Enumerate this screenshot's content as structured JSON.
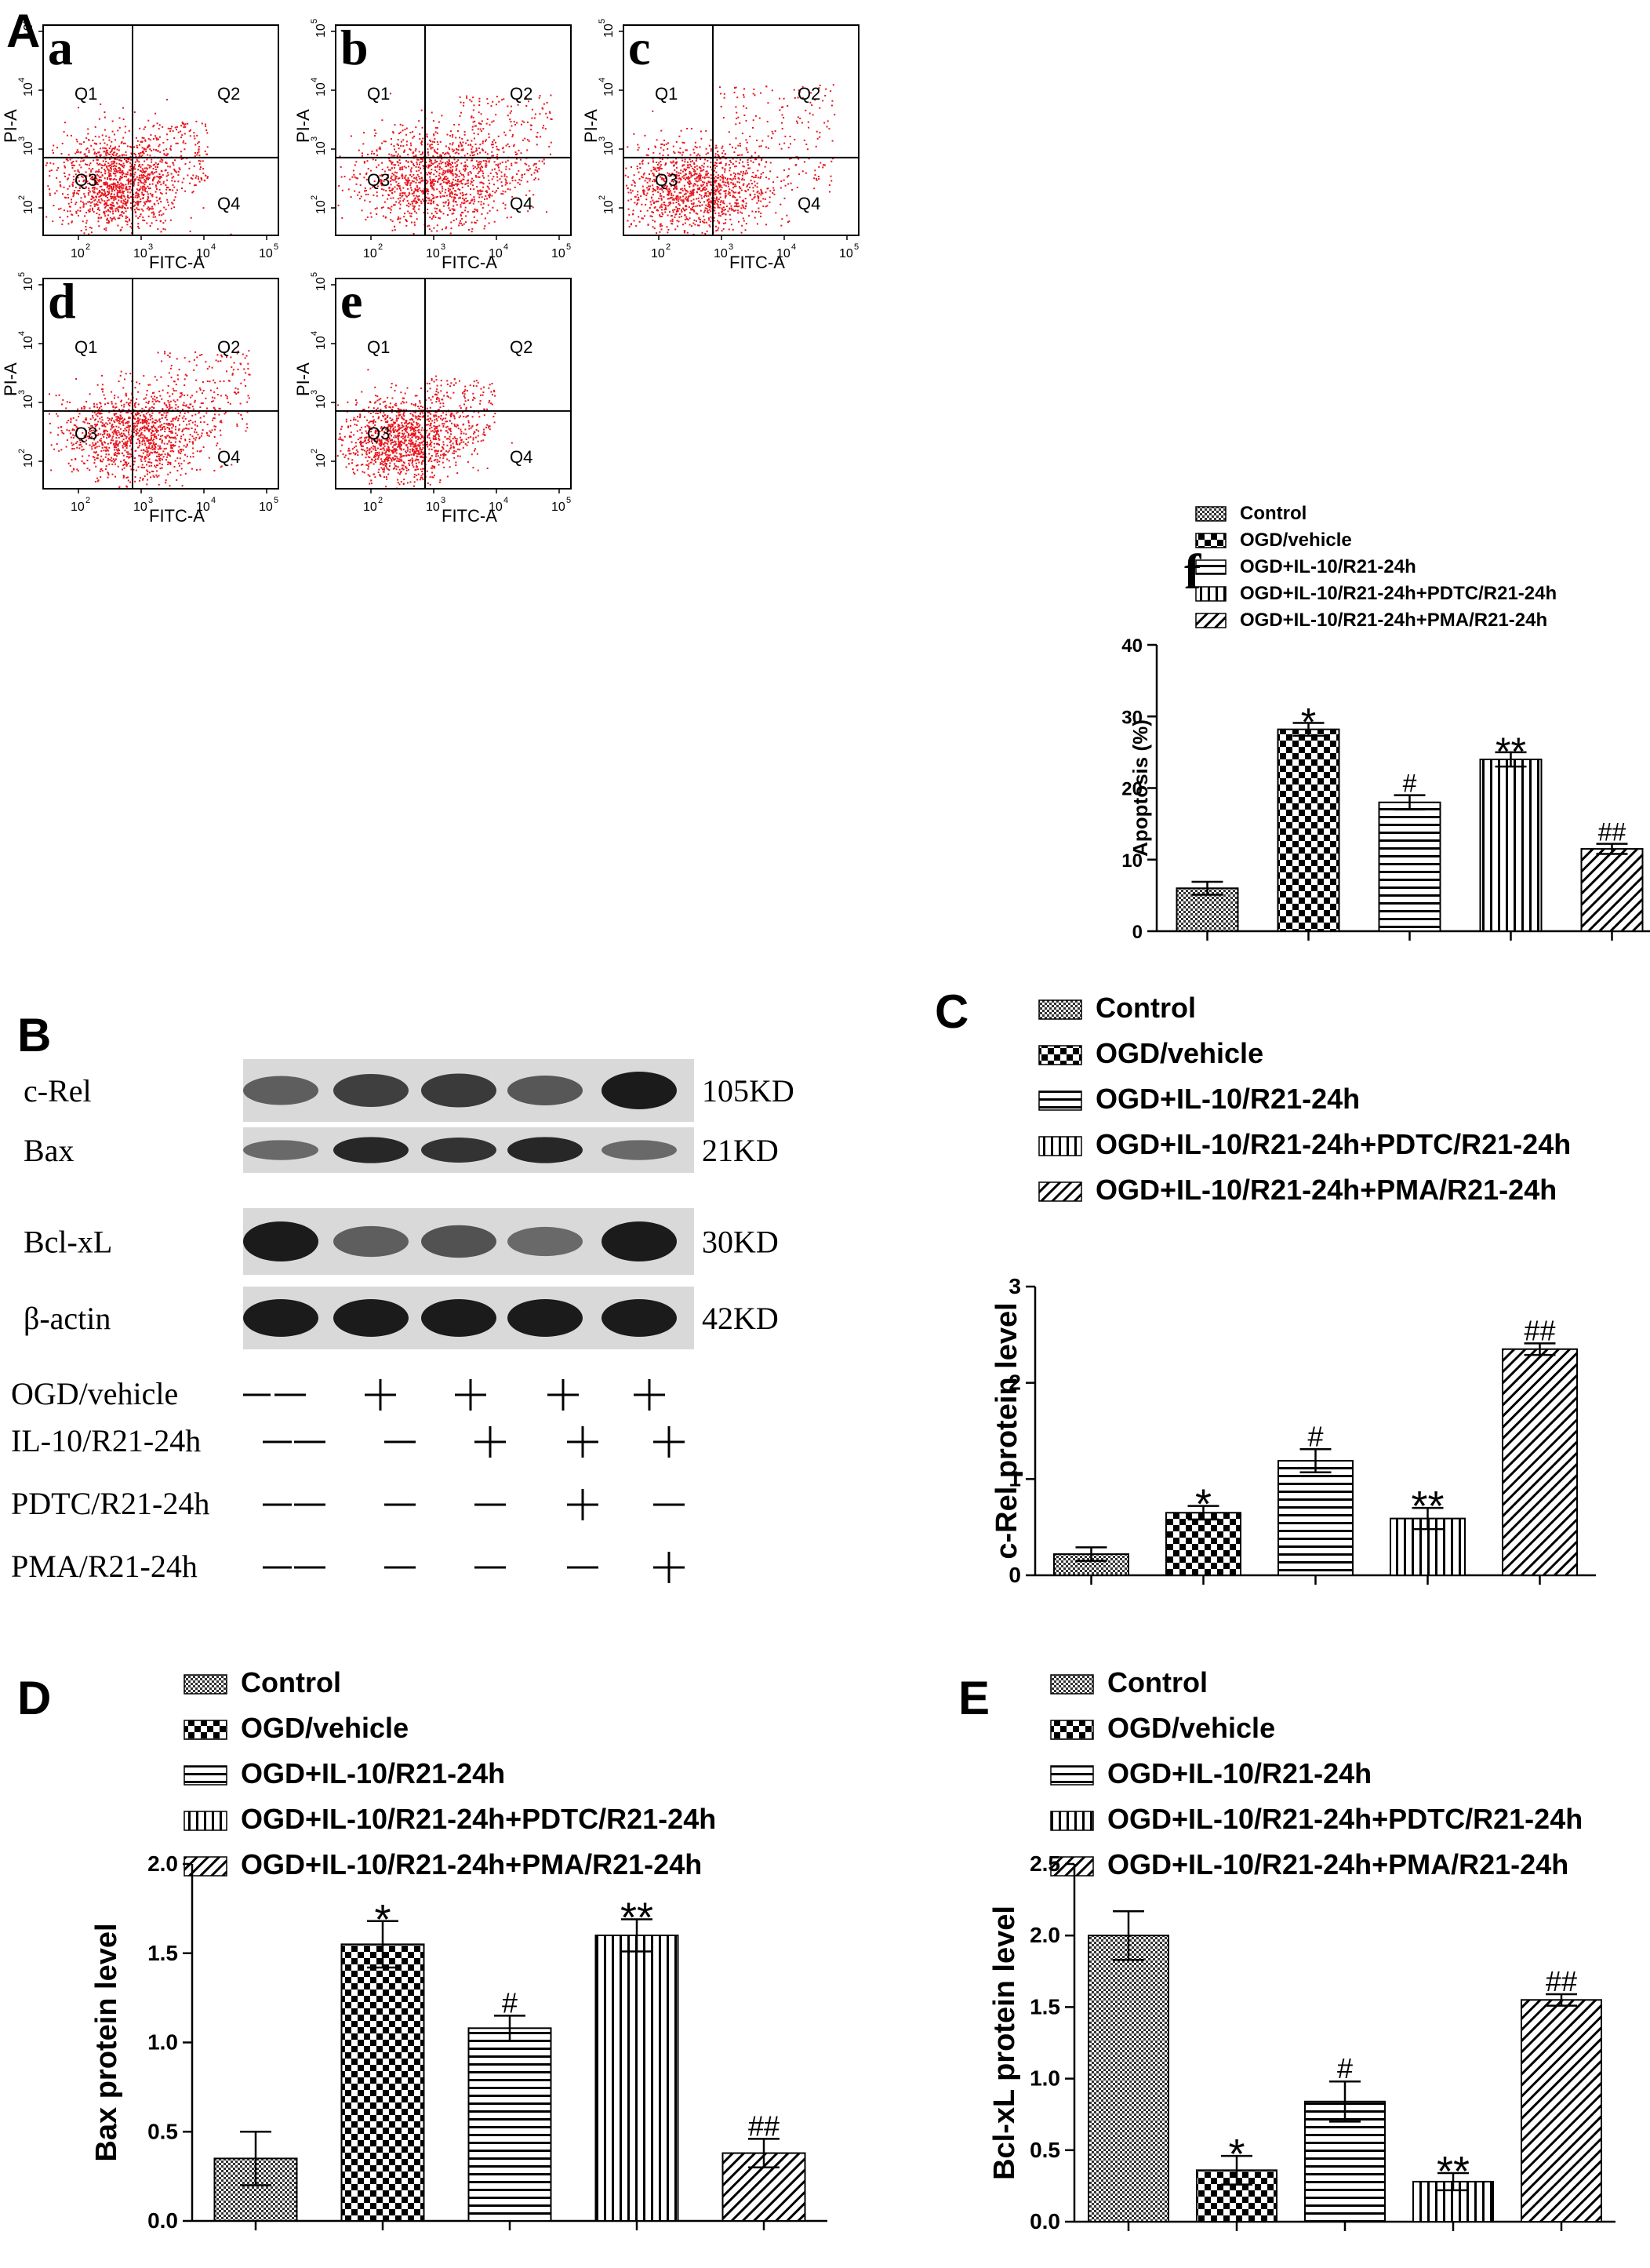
{
  "panel_letters": {
    "A": "A",
    "B": "B",
    "C": "C",
    "D": "D",
    "E": "E"
  },
  "flow": {
    "xlabel": "FITC-A",
    "ylabel": "PI-A",
    "x_ticks": [
      "10",
      "10",
      "10",
      "10"
    ],
    "x_exps": [
      "2",
      "3",
      "4",
      "5"
    ],
    "y_ticks": [
      "10",
      "10",
      "10",
      "10"
    ],
    "y_exps": [
      "2",
      "3",
      "4",
      "5"
    ],
    "quadrants": [
      "Q1",
      "Q2",
      "Q3",
      "Q4"
    ],
    "dot_color": "#e8141c",
    "panels": [
      {
        "tag": "a"
      },
      {
        "tag": "b"
      },
      {
        "tag": "c"
      },
      {
        "tag": "d"
      },
      {
        "tag": "e"
      }
    ]
  },
  "legend_groups": [
    "Control",
    "OGD/vehicle",
    "OGD+IL-10/R21-24h",
    "OGD+IL-10/R21-24h+PDTC/R21-24h",
    "OGD+IL-10/R21-24h+PMA/R21-24h"
  ],
  "western": {
    "proteins": [
      {
        "name": "c-Rel",
        "size": "105KD"
      },
      {
        "name": "Bax",
        "size": "21KD"
      },
      {
        "name": "Bcl-xL",
        "size": "30KD"
      },
      {
        "name": "β-actin",
        "size": "42KD"
      }
    ],
    "conditions": [
      {
        "label": "OGD/vehicle",
        "signs": [
          "—",
          "+",
          "+",
          "+",
          "+"
        ]
      },
      {
        "label": "IL-10/R21-24h",
        "signs": [
          "—",
          "—",
          "+",
          "+",
          "+"
        ]
      },
      {
        "label": "PDTC/R21-24h",
        "signs": [
          "—",
          "—",
          "—",
          "+",
          "—"
        ]
      },
      {
        "label": "PMA/R21-24h",
        "signs": [
          "—",
          "—",
          "—",
          "—",
          "+"
        ]
      }
    ]
  },
  "chart_data": [
    {
      "id": "f",
      "type": "bar",
      "title": "f",
      "ylabel": "Apoptosis  (%)",
      "ylim": [
        0,
        40
      ],
      "yticks": [
        "0",
        "10",
        "20",
        "30",
        "40"
      ],
      "categories": [
        "Control",
        "OGD/vehicle",
        "OGD+IL-10/R21-24h",
        "OGD+IL-10/R21-24h+PDTC/R21-24h",
        "OGD+IL-10/R21-24h+PMA/R21-24h"
      ],
      "values": [
        6.0,
        28.2,
        18.0,
        24.0,
        11.5
      ],
      "errors": [
        0.9,
        0.9,
        1.0,
        1.0,
        0.7
      ],
      "annotations": [
        "",
        "*",
        "#",
        "**",
        "##"
      ]
    },
    {
      "id": "C",
      "type": "bar",
      "ylabel": "c-Rel protein level",
      "ylim": [
        0,
        3
      ],
      "yticks": [
        "0",
        "1",
        "2",
        "3"
      ],
      "categories": [
        "Control",
        "OGD/vehicle",
        "OGD+IL-10/R21-24h",
        "OGD+IL-10/R21-24h+PDTC/R21-24h",
        "OGD+IL-10/R21-24h+PMA/R21-24h"
      ],
      "values": [
        0.22,
        0.65,
        1.19,
        0.59,
        2.35
      ],
      "errors": [
        0.07,
        0.07,
        0.12,
        0.11,
        0.06
      ],
      "annotations": [
        "",
        "*",
        "#",
        "**",
        "##"
      ]
    },
    {
      "id": "D",
      "type": "bar",
      "ylabel": "Bax protein level",
      "ylim": [
        0,
        2.0
      ],
      "yticks": [
        "0.0",
        "0.5",
        "1.0",
        "1.5",
        "2.0"
      ],
      "categories": [
        "Control",
        "OGD/vehicle",
        "OGD+IL-10/R21-24h",
        "OGD+IL-10/R21-24h+PDTC/R21-24h",
        "OGD+IL-10/R21-24h+PMA/R21-24h"
      ],
      "values": [
        0.35,
        1.55,
        1.08,
        1.6,
        0.38
      ],
      "errors": [
        0.15,
        0.13,
        0.07,
        0.09,
        0.08
      ],
      "annotations": [
        "",
        "*",
        "#",
        "**",
        "##"
      ]
    },
    {
      "id": "E",
      "type": "bar",
      "ylabel": "Bcl-xL protein level",
      "ylim": [
        0,
        2.5
      ],
      "yticks": [
        "0.0",
        "0.5",
        "1.0",
        "1.5",
        "2.0",
        "2.5"
      ],
      "categories": [
        "Control",
        "OGD/vehicle",
        "OGD+IL-10/R21-24h",
        "OGD+IL-10/R21-24h+PDTC/R21-24h",
        "OGD+IL-10/R21-24h+PMA/R21-24h"
      ],
      "values": [
        2.0,
        0.36,
        0.84,
        0.28,
        1.55
      ],
      "errors": [
        0.17,
        0.1,
        0.14,
        0.06,
        0.04
      ],
      "annotations": [
        "",
        "*",
        "#",
        "**",
        "##"
      ]
    }
  ]
}
